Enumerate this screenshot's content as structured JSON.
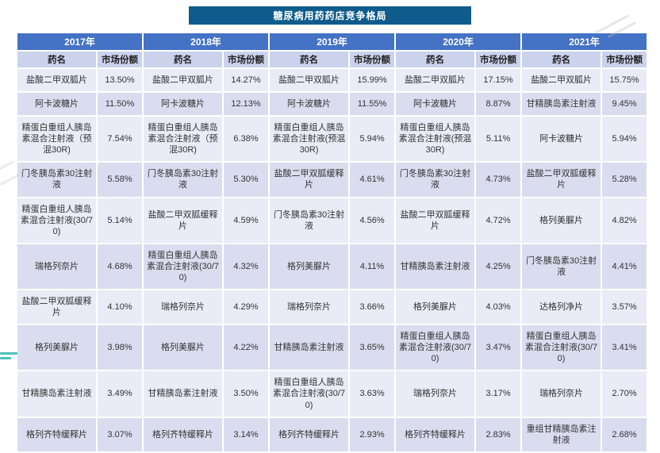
{
  "title": "糖尿病用药药店竞争格局",
  "columns": {
    "drug": "药名",
    "share": "市场份额"
  },
  "colors": {
    "banner": "#0F5C8C",
    "year_header": "#4472C4",
    "subheader": "#CBD2EC",
    "row_light": "#E9EBF6",
    "row_dark": "#DADDEF",
    "watermark_teal": "#2FB8B0"
  },
  "chart_data": {
    "type": "table",
    "title": "糖尿病用药药店竞争格局",
    "column_headers": [
      "药名",
      "市场份额"
    ],
    "groups": [
      {
        "year": "2017年",
        "rows": [
          [
            "盐酸二甲双胍片",
            "13.50%"
          ],
          [
            "阿卡波糖片",
            "11.50%"
          ],
          [
            "精蛋白重组人胰岛素混合注射液（预混30R)",
            "7.54%"
          ],
          [
            "门冬胰岛素30注射液",
            "5.58%"
          ],
          [
            "精蛋白重组人胰岛素混合注射液(30/70)",
            "5.14%"
          ],
          [
            "瑞格列奈片",
            "4.68%"
          ],
          [
            "盐酸二甲双胍缓释片",
            "4.10%"
          ],
          [
            "格列美脲片",
            "3.98%"
          ],
          [
            "甘精胰岛素注射液",
            "3.49%"
          ],
          [
            "格列齐特缓释片",
            "3.07%"
          ]
        ]
      },
      {
        "year": "2018年",
        "rows": [
          [
            "盐酸二甲双胍片",
            "14.27%"
          ],
          [
            "阿卡波糖片",
            "12.13%"
          ],
          [
            "精蛋白重组人胰岛素混合注射液（预混30R)",
            "6.38%"
          ],
          [
            "门冬胰岛素30注射液",
            "5.30%"
          ],
          [
            "盐酸二甲双胍缓释片",
            "4.59%"
          ],
          [
            "精蛋白重组人胰岛素混合注射液(30/70)",
            "4.32%"
          ],
          [
            "瑞格列奈片",
            "4.29%"
          ],
          [
            "格列美脲片",
            "4.22%"
          ],
          [
            "甘精胰岛素注射液",
            "3.50%"
          ],
          [
            "格列齐特缓释片",
            "3.14%"
          ]
        ]
      },
      {
        "year": "2019年",
        "rows": [
          [
            "盐酸二甲双胍片",
            "15.99%"
          ],
          [
            "阿卡波糖片",
            "11.55%"
          ],
          [
            "精蛋白重组人胰岛素混合注射液(预混30R)",
            "5.94%"
          ],
          [
            "盐酸二甲双胍缓释片",
            "4.61%"
          ],
          [
            "门冬胰岛素30注射液",
            "4.56%"
          ],
          [
            "格列美脲片",
            "4.11%"
          ],
          [
            "瑞格列奈片",
            "3.66%"
          ],
          [
            "甘精胰岛素注射液",
            "3.65%"
          ],
          [
            "精蛋白重组人胰岛素混合注射液(30/70)",
            "3.63%"
          ],
          [
            "格列齐特缓释片",
            "2.93%"
          ]
        ]
      },
      {
        "year": "2020年",
        "rows": [
          [
            "盐酸二甲双胍片",
            "17.15%"
          ],
          [
            "阿卡波糖片",
            "8.87%"
          ],
          [
            "精蛋白重组人胰岛素混合注射液(预混30R)",
            "5.11%"
          ],
          [
            "门冬胰岛素30注射液",
            "4.73%"
          ],
          [
            "盐酸二甲双胍缓释片",
            "4.72%"
          ],
          [
            "甘精胰岛素注射液",
            "4.25%"
          ],
          [
            "格列美脲片",
            "4.03%"
          ],
          [
            "精蛋白重组人胰岛素混合注射液(30/70)",
            "3.47%"
          ],
          [
            "瑞格列奈片",
            "3.17%"
          ],
          [
            "格列齐特缓释片",
            "2.83%"
          ]
        ]
      },
      {
        "year": "2021年",
        "rows": [
          [
            "盐酸二甲双胍片",
            "15.75%"
          ],
          [
            "甘精胰岛素注射液",
            "9.45%"
          ],
          [
            "阿卡波糖片",
            "5.94%"
          ],
          [
            "盐酸二甲双胍缓释片",
            "5.28%"
          ],
          [
            "格列美脲片",
            "4.82%"
          ],
          [
            "门冬胰岛素30注射液",
            "4.41%"
          ],
          [
            "达格列净片",
            "3.57%"
          ],
          [
            "精蛋白重组人胰岛素混合注射液(30/70)",
            "3.41%"
          ],
          [
            "瑞格列奈片",
            "2.70%"
          ],
          [
            "重组甘精胰岛素注射液",
            "2.68%"
          ]
        ]
      }
    ]
  }
}
